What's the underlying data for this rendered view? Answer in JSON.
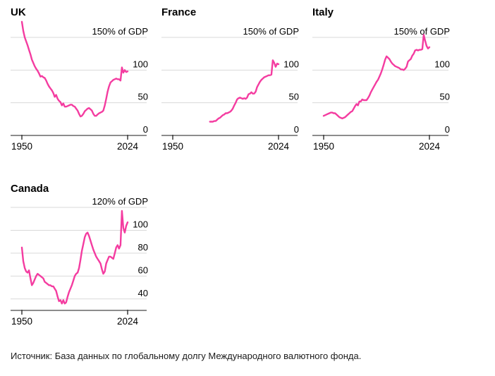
{
  "page": {
    "background": "#ffffff"
  },
  "style": {
    "line_color": "#f43ca0",
    "grid_color": "#d9d9d9",
    "axis_color": "#8c8c8c",
    "tick_color": "#3a3a3a",
    "text_color": "#000000"
  },
  "source_note": "Источник: База данных по глобальному долгу Международного валютного фонда.",
  "chart_data": [
    {
      "type": "line",
      "title": "UK",
      "ylabel": "% of GDP",
      "xlabel": "",
      "legend": "none",
      "grid": "on",
      "xlim": [
        1950,
        2024
      ],
      "ylim": [
        0,
        175
      ],
      "baseline": 0,
      "yticks": [
        {
          "value": 150,
          "label": "150% of GDP"
        },
        {
          "value": 100,
          "label": "100"
        },
        {
          "value": 50,
          "label": "50"
        },
        {
          "value": 0,
          "label": "0"
        }
      ],
      "xticks": [
        {
          "value": 1950,
          "label": "1950"
        },
        {
          "value": 2024,
          "label": "2024"
        }
      ],
      "series": [
        [
          1950,
          174
        ],
        [
          1951,
          160
        ],
        [
          1952,
          150
        ],
        [
          1953,
          144
        ],
        [
          1954,
          138
        ],
        [
          1955,
          131
        ],
        [
          1956,
          124
        ],
        [
          1957,
          116
        ],
        [
          1958,
          111
        ],
        [
          1959,
          106
        ],
        [
          1960,
          102
        ],
        [
          1961,
          99
        ],
        [
          1962,
          95
        ],
        [
          1963,
          90
        ],
        [
          1964,
          91
        ],
        [
          1965,
          89
        ],
        [
          1966,
          88
        ],
        [
          1967,
          84
        ],
        [
          1968,
          79
        ],
        [
          1969,
          75
        ],
        [
          1970,
          72
        ],
        [
          1971,
          69
        ],
        [
          1972,
          65
        ],
        [
          1973,
          59
        ],
        [
          1974,
          62
        ],
        [
          1975,
          56
        ],
        [
          1976,
          53
        ],
        [
          1977,
          51
        ],
        [
          1978,
          46
        ],
        [
          1979,
          49
        ],
        [
          1980,
          44
        ],
        [
          1981,
          44
        ],
        [
          1982,
          45
        ],
        [
          1983,
          46
        ],
        [
          1984,
          47
        ],
        [
          1985,
          47
        ],
        [
          1986,
          45
        ],
        [
          1987,
          44
        ],
        [
          1988,
          41
        ],
        [
          1989,
          38
        ],
        [
          1990,
          33
        ],
        [
          1991,
          29
        ],
        [
          1992,
          30
        ],
        [
          1993,
          33
        ],
        [
          1994,
          37
        ],
        [
          1995,
          39
        ],
        [
          1996,
          41
        ],
        [
          1997,
          42
        ],
        [
          1998,
          40
        ],
        [
          1999,
          38
        ],
        [
          2000,
          33
        ],
        [
          2001,
          30
        ],
        [
          2002,
          30
        ],
        [
          2003,
          32
        ],
        [
          2004,
          34
        ],
        [
          2005,
          35
        ],
        [
          2006,
          36
        ],
        [
          2007,
          38
        ],
        [
          2008,
          46
        ],
        [
          2009,
          56
        ],
        [
          2010,
          67
        ],
        [
          2011,
          75
        ],
        [
          2012,
          81
        ],
        [
          2013,
          83
        ],
        [
          2014,
          85
        ],
        [
          2015,
          86
        ],
        [
          2016,
          87
        ],
        [
          2017,
          86
        ],
        [
          2018,
          86
        ],
        [
          2019,
          84
        ],
        [
          2020,
          104
        ],
        [
          2021,
          96
        ],
        [
          2022,
          100
        ],
        [
          2023,
          97
        ],
        [
          2024,
          98
        ]
      ]
    },
    {
      "type": "line",
      "title": "France",
      "ylabel": "% of GDP",
      "xlabel": "",
      "legend": "none",
      "grid": "on",
      "xlim": [
        1950,
        2024
      ],
      "ylim": [
        0,
        175
      ],
      "baseline": 0,
      "yticks": [
        {
          "value": 150,
          "label": "150% of GDP"
        },
        {
          "value": 100,
          "label": "100"
        },
        {
          "value": 50,
          "label": "50"
        },
        {
          "value": 0,
          "label": "0"
        }
      ],
      "xticks": [
        {
          "value": 1950,
          "label": "1950"
        },
        {
          "value": 2024,
          "label": "2024"
        }
      ],
      "series": [
        [
          1976,
          21
        ],
        [
          1977,
          21
        ],
        [
          1978,
          21
        ],
        [
          1979,
          22
        ],
        [
          1980,
          22
        ],
        [
          1981,
          24
        ],
        [
          1982,
          26
        ],
        [
          1983,
          27
        ],
        [
          1984,
          29
        ],
        [
          1985,
          31
        ],
        [
          1986,
          32
        ],
        [
          1987,
          34
        ],
        [
          1988,
          34
        ],
        [
          1989,
          35
        ],
        [
          1990,
          36
        ],
        [
          1991,
          38
        ],
        [
          1992,
          41
        ],
        [
          1993,
          46
        ],
        [
          1994,
          50
        ],
        [
          1995,
          55
        ],
        [
          1996,
          57
        ],
        [
          1997,
          58
        ],
        [
          1998,
          57
        ],
        [
          1999,
          56
        ],
        [
          2000,
          57
        ],
        [
          2001,
          56
        ],
        [
          2002,
          58
        ],
        [
          2003,
          63
        ],
        [
          2004,
          64
        ],
        [
          2005,
          66
        ],
        [
          2006,
          64
        ],
        [
          2007,
          64
        ],
        [
          2008,
          67
        ],
        [
          2009,
          74
        ],
        [
          2010,
          78
        ],
        [
          2011,
          82
        ],
        [
          2012,
          85
        ],
        [
          2013,
          87
        ],
        [
          2014,
          89
        ],
        [
          2015,
          90
        ],
        [
          2016,
          91
        ],
        [
          2017,
          92
        ],
        [
          2018,
          92
        ],
        [
          2019,
          93
        ],
        [
          2020,
          115
        ],
        [
          2021,
          111
        ],
        [
          2022,
          105
        ],
        [
          2023,
          110
        ],
        [
          2024,
          109
        ]
      ]
    },
    {
      "type": "line",
      "title": "Italy",
      "ylabel": "% of GDP",
      "xlabel": "",
      "legend": "none",
      "grid": "on",
      "xlim": [
        1950,
        2024
      ],
      "ylim": [
        0,
        175
      ],
      "baseline": 0,
      "yticks": [
        {
          "value": 150,
          "label": "150% of GDP"
        },
        {
          "value": 100,
          "label": "100"
        },
        {
          "value": 50,
          "label": "50"
        },
        {
          "value": 0,
          "label": "0"
        }
      ],
      "xticks": [
        {
          "value": 1950,
          "label": "1950"
        },
        {
          "value": 2024,
          "label": "2024"
        }
      ],
      "series": [
        [
          1950,
          30
        ],
        [
          1951,
          31
        ],
        [
          1952,
          32
        ],
        [
          1953,
          33
        ],
        [
          1954,
          34
        ],
        [
          1955,
          35
        ],
        [
          1956,
          35
        ],
        [
          1957,
          34
        ],
        [
          1958,
          34
        ],
        [
          1959,
          32
        ],
        [
          1960,
          30
        ],
        [
          1961,
          28
        ],
        [
          1962,
          27
        ],
        [
          1963,
          26
        ],
        [
          1964,
          27
        ],
        [
          1965,
          28
        ],
        [
          1966,
          30
        ],
        [
          1967,
          32
        ],
        [
          1968,
          34
        ],
        [
          1969,
          36
        ],
        [
          1970,
          37
        ],
        [
          1971,
          41
        ],
        [
          1972,
          45
        ],
        [
          1973,
          48
        ],
        [
          1974,
          46
        ],
        [
          1975,
          52
        ],
        [
          1976,
          52
        ],
        [
          1977,
          55
        ],
        [
          1978,
          54
        ],
        [
          1979,
          54
        ],
        [
          1980,
          54
        ],
        [
          1981,
          57
        ],
        [
          1982,
          61
        ],
        [
          1983,
          66
        ],
        [
          1984,
          70
        ],
        [
          1985,
          74
        ],
        [
          1986,
          78
        ],
        [
          1987,
          82
        ],
        [
          1988,
          85
        ],
        [
          1989,
          90
        ],
        [
          1990,
          95
        ],
        [
          1991,
          101
        ],
        [
          1992,
          108
        ],
        [
          1993,
          116
        ],
        [
          1994,
          121
        ],
        [
          1995,
          119
        ],
        [
          1996,
          117
        ],
        [
          1997,
          113
        ],
        [
          1998,
          110
        ],
        [
          1999,
          108
        ],
        [
          2000,
          106
        ],
        [
          2001,
          105
        ],
        [
          2002,
          104
        ],
        [
          2003,
          103
        ],
        [
          2004,
          101
        ],
        [
          2005,
          101
        ],
        [
          2006,
          100
        ],
        [
          2007,
          102
        ],
        [
          2008,
          105
        ],
        [
          2009,
          113
        ],
        [
          2010,
          115
        ],
        [
          2011,
          117
        ],
        [
          2012,
          122
        ],
        [
          2013,
          125
        ],
        [
          2014,
          130
        ],
        [
          2015,
          131
        ],
        [
          2016,
          130
        ],
        [
          2017,
          131
        ],
        [
          2018,
          131
        ],
        [
          2019,
          132
        ],
        [
          2020,
          154
        ],
        [
          2021,
          145
        ],
        [
          2022,
          137
        ],
        [
          2023,
          133
        ],
        [
          2024,
          135
        ]
      ]
    },
    {
      "type": "line",
      "title": "Canada",
      "ylabel": "% of GDP",
      "xlabel": "",
      "legend": "none",
      "grid": "on",
      "xlim": [
        1950,
        2024
      ],
      "ylim": [
        30,
        120
      ],
      "baseline": 30,
      "yticks": [
        {
          "value": 120,
          "label": "120% of GDP"
        },
        {
          "value": 100,
          "label": "100"
        },
        {
          "value": 80,
          "label": "80"
        },
        {
          "value": 60,
          "label": "60"
        },
        {
          "value": 40,
          "label": "40"
        }
      ],
      "xticks": [
        {
          "value": 1950,
          "label": "1950"
        },
        {
          "value": 2024,
          "label": "2024"
        }
      ],
      "series": [
        [
          1950,
          85
        ],
        [
          1951,
          73
        ],
        [
          1952,
          67
        ],
        [
          1953,
          64
        ],
        [
          1954,
          63
        ],
        [
          1955,
          65
        ],
        [
          1956,
          58
        ],
        [
          1957,
          52
        ],
        [
          1958,
          54
        ],
        [
          1959,
          57
        ],
        [
          1960,
          60
        ],
        [
          1961,
          62
        ],
        [
          1962,
          61
        ],
        [
          1963,
          60
        ],
        [
          1964,
          59
        ],
        [
          1965,
          58
        ],
        [
          1966,
          55
        ],
        [
          1967,
          54
        ],
        [
          1968,
          53
        ],
        [
          1969,
          52
        ],
        [
          1970,
          52
        ],
        [
          1971,
          51
        ],
        [
          1972,
          51
        ],
        [
          1973,
          49
        ],
        [
          1974,
          47
        ],
        [
          1975,
          42
        ],
        [
          1976,
          38
        ],
        [
          1977,
          39
        ],
        [
          1978,
          36
        ],
        [
          1979,
          39
        ],
        [
          1980,
          36
        ],
        [
          1981,
          37
        ],
        [
          1982,
          42
        ],
        [
          1983,
          46
        ],
        [
          1984,
          49
        ],
        [
          1985,
          52
        ],
        [
          1986,
          56
        ],
        [
          1987,
          60
        ],
        [
          1988,
          62
        ],
        [
          1989,
          63
        ],
        [
          1990,
          67
        ],
        [
          1991,
          74
        ],
        [
          1992,
          82
        ],
        [
          1993,
          88
        ],
        [
          1994,
          94
        ],
        [
          1995,
          97
        ],
        [
          1996,
          98
        ],
        [
          1997,
          95
        ],
        [
          1998,
          91
        ],
        [
          1999,
          87
        ],
        [
          2000,
          83
        ],
        [
          2001,
          80
        ],
        [
          2002,
          77
        ],
        [
          2003,
          75
        ],
        [
          2004,
          73
        ],
        [
          2005,
          71
        ],
        [
          2006,
          66
        ],
        [
          2007,
          62
        ],
        [
          2008,
          64
        ],
        [
          2009,
          71
        ],
        [
          2010,
          74
        ],
        [
          2011,
          77
        ],
        [
          2012,
          77
        ],
        [
          2013,
          76
        ],
        [
          2014,
          75
        ],
        [
          2015,
          80
        ],
        [
          2016,
          85
        ],
        [
          2017,
          87
        ],
        [
          2018,
          84
        ],
        [
          2019,
          87
        ],
        [
          2020,
          117
        ],
        [
          2021,
          102
        ],
        [
          2022,
          98
        ],
        [
          2023,
          104
        ],
        [
          2024,
          107
        ]
      ]
    }
  ]
}
